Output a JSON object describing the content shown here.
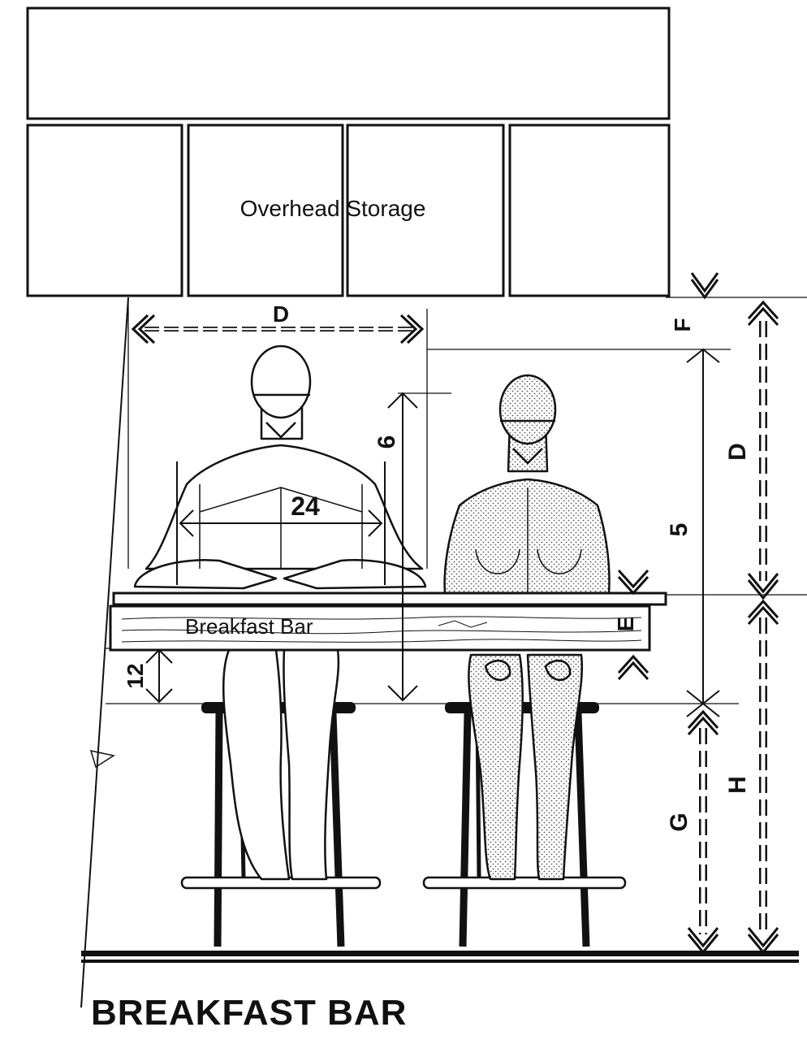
{
  "labels": {
    "overhead_storage": "Overhead Storage",
    "breakfast_bar": "Breakfast Bar",
    "title": "BREAKFAST BAR"
  },
  "dimensions": {
    "top_width": "D",
    "right_upper": "D",
    "clearance_top": "F",
    "seated_height": "5",
    "counter_thickness": "E",
    "stool_height": "G",
    "counter_height": "H",
    "head_height": "6",
    "shoulder_width": "24",
    "knee_clearance": "12"
  }
}
